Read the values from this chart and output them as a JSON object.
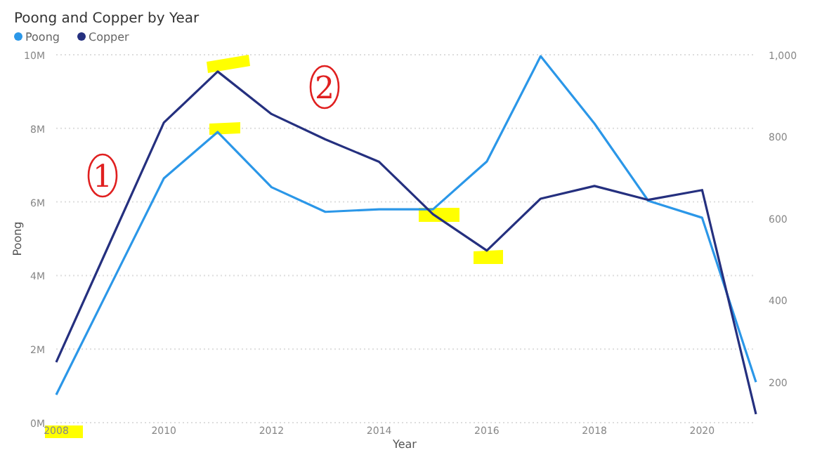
{
  "chart_data": {
    "type": "line",
    "title": "Poong and Copper by Year",
    "xlabel": "Year",
    "ylabel": "Poong",
    "legend": "top left",
    "grid": "y",
    "annotations": [
      "1",
      "2"
    ],
    "x": [
      2008,
      2009,
      2010,
      2011,
      2012,
      2013,
      2014,
      2015,
      2016,
      2017,
      2018,
      2019,
      2020,
      2021
    ],
    "xlim": [
      2008,
      2021
    ],
    "xticks": [
      2008,
      2010,
      2012,
      2014,
      2016,
      2018,
      2020
    ],
    "ylim": [
      0,
      10000000
    ],
    "yticks": [
      {
        "value": 0,
        "label": "0M"
      },
      {
        "value": 2000000,
        "label": "2M"
      },
      {
        "value": 4000000,
        "label": "4M"
      },
      {
        "value": 6000000,
        "label": "6M"
      },
      {
        "value": 8000000,
        "label": "8M"
      },
      {
        "value": 10000000,
        "label": "10M"
      }
    ],
    "y2lim": [
      100,
      1000
    ],
    "y2ticks": [
      200,
      400,
      600,
      800,
      {
        "value": 1000,
        "label": "1,000"
      }
    ],
    "series": [
      {
        "name": "Poong",
        "color": "#2b97e8",
        "values": [
          760000,
          3700000,
          6640000,
          7900000,
          6400000,
          5730000,
          5800000,
          5800000,
          7100000,
          9960000,
          8130000,
          6030000,
          5570000,
          1100000
        ]
      },
      {
        "name": "Copper",
        "color": "#25307f",
        "axis": "y2",
        "values": [
          248,
          541,
          834,
          959,
          855,
          793,
          738,
          610,
          521,
          648,
          679,
          645,
          669,
          121
        ]
      }
    ]
  }
}
